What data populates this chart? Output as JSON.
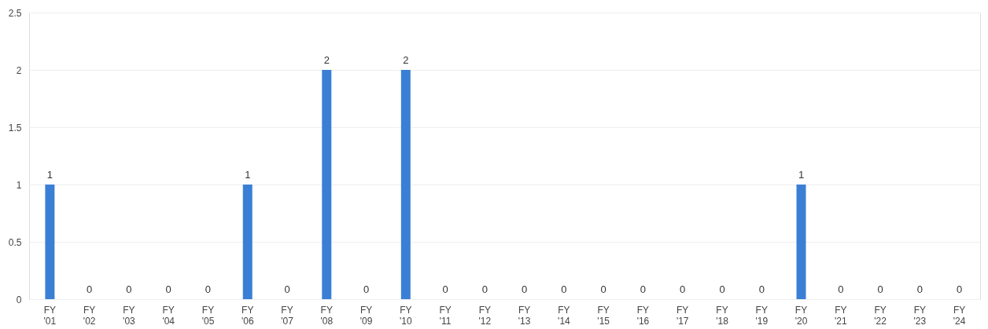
{
  "chart_data": {
    "type": "bar",
    "categories": [
      "FY '01",
      "FY '02",
      "FY '03",
      "FY '04",
      "FY '05",
      "FY '06",
      "FY '07",
      "FY '08",
      "FY '09",
      "FY '10",
      "FY '11",
      "FY '12",
      "FY '13",
      "FY '14",
      "FY '15",
      "FY '16",
      "FY '17",
      "FY '18",
      "FY '19",
      "FY '20",
      "FY '21",
      "FY '22",
      "FY '23",
      "FY '24"
    ],
    "values": [
      1,
      0,
      0,
      0,
      0,
      1,
      0,
      2,
      0,
      2,
      0,
      0,
      0,
      0,
      0,
      0,
      0,
      0,
      0,
      1,
      0,
      0,
      0,
      0
    ],
    "color": "#3a7fd5",
    "ylim": [
      0,
      2.5
    ],
    "yticks": [
      0,
      0.5,
      1,
      1.5,
      2,
      2.5
    ],
    "grid": "y",
    "data_labels": true
  }
}
